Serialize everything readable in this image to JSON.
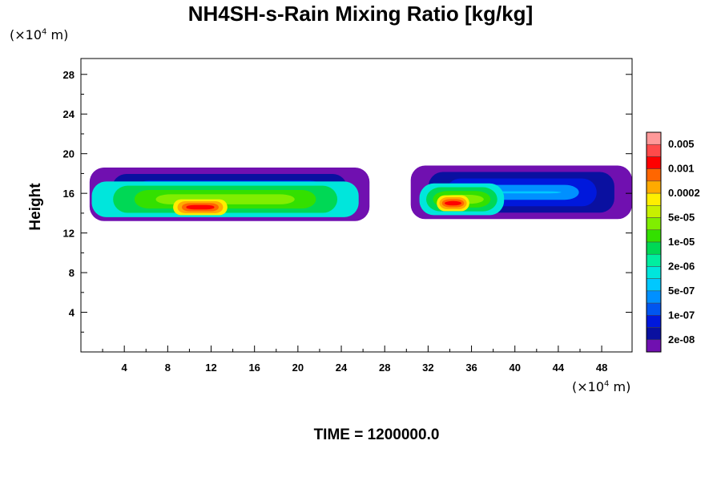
{
  "chart_data": {
    "type": "heatmap",
    "title": "NH4SH-s-Rain Mixing Ratio [kg/kg]",
    "xlabel": "",
    "ylabel": "Height",
    "x_unit": "(×10",
    "x_unit_exp": "4",
    "x_unit_tail": " m)",
    "y_unit": "(×10",
    "y_unit_exp": "4",
    "y_unit_tail": " m)",
    "xlim": [
      0,
      50.8
    ],
    "ylim": [
      0,
      29.6
    ],
    "x_ticks": [
      4,
      8,
      12,
      16,
      20,
      24,
      28,
      32,
      36,
      40,
      44,
      48
    ],
    "y_ticks": [
      4,
      8,
      12,
      16,
      20,
      24,
      28
    ],
    "grid": false,
    "colorbar": {
      "labels": [
        "0.005",
        "0.001",
        "0.0002",
        "5e-05",
        "1e-05",
        "2e-06",
        "5e-07",
        "1e-07",
        "2e-08"
      ],
      "colors": [
        "#ff9999",
        "#ff4a4a",
        "#ff0000",
        "#ff6600",
        "#ffaa00",
        "#ffee00",
        "#c8f000",
        "#80ee00",
        "#33e000",
        "#00d855",
        "#00eea0",
        "#00e6dc",
        "#00c8ff",
        "#0090ff",
        "#0055f0",
        "#0018dc",
        "#0a10a0",
        "#7010b0"
      ]
    },
    "regions": [
      {
        "x0": 0.8,
        "x1": 26.6,
        "y0": 13.2,
        "y1": 18.6,
        "level": "low"
      },
      {
        "x0": 1.0,
        "x1": 25.6,
        "y0": 13.6,
        "y1": 17.2,
        "level": "mid"
      },
      {
        "x0": 8.5,
        "x1": 13.5,
        "y0": 13.8,
        "y1": 15.4,
        "level": "high"
      },
      {
        "x0": 30.4,
        "x1": 50.8,
        "y0": 13.4,
        "y1": 18.8,
        "level": "low"
      },
      {
        "x0": 31.2,
        "x1": 39.0,
        "y0": 13.8,
        "y1": 17.0,
        "level": "mid"
      },
      {
        "x0": 32.8,
        "x1": 35.8,
        "y0": 14.2,
        "y1": 15.8,
        "level": "high"
      }
    ],
    "time_label": "TIME = 1200000.0"
  }
}
